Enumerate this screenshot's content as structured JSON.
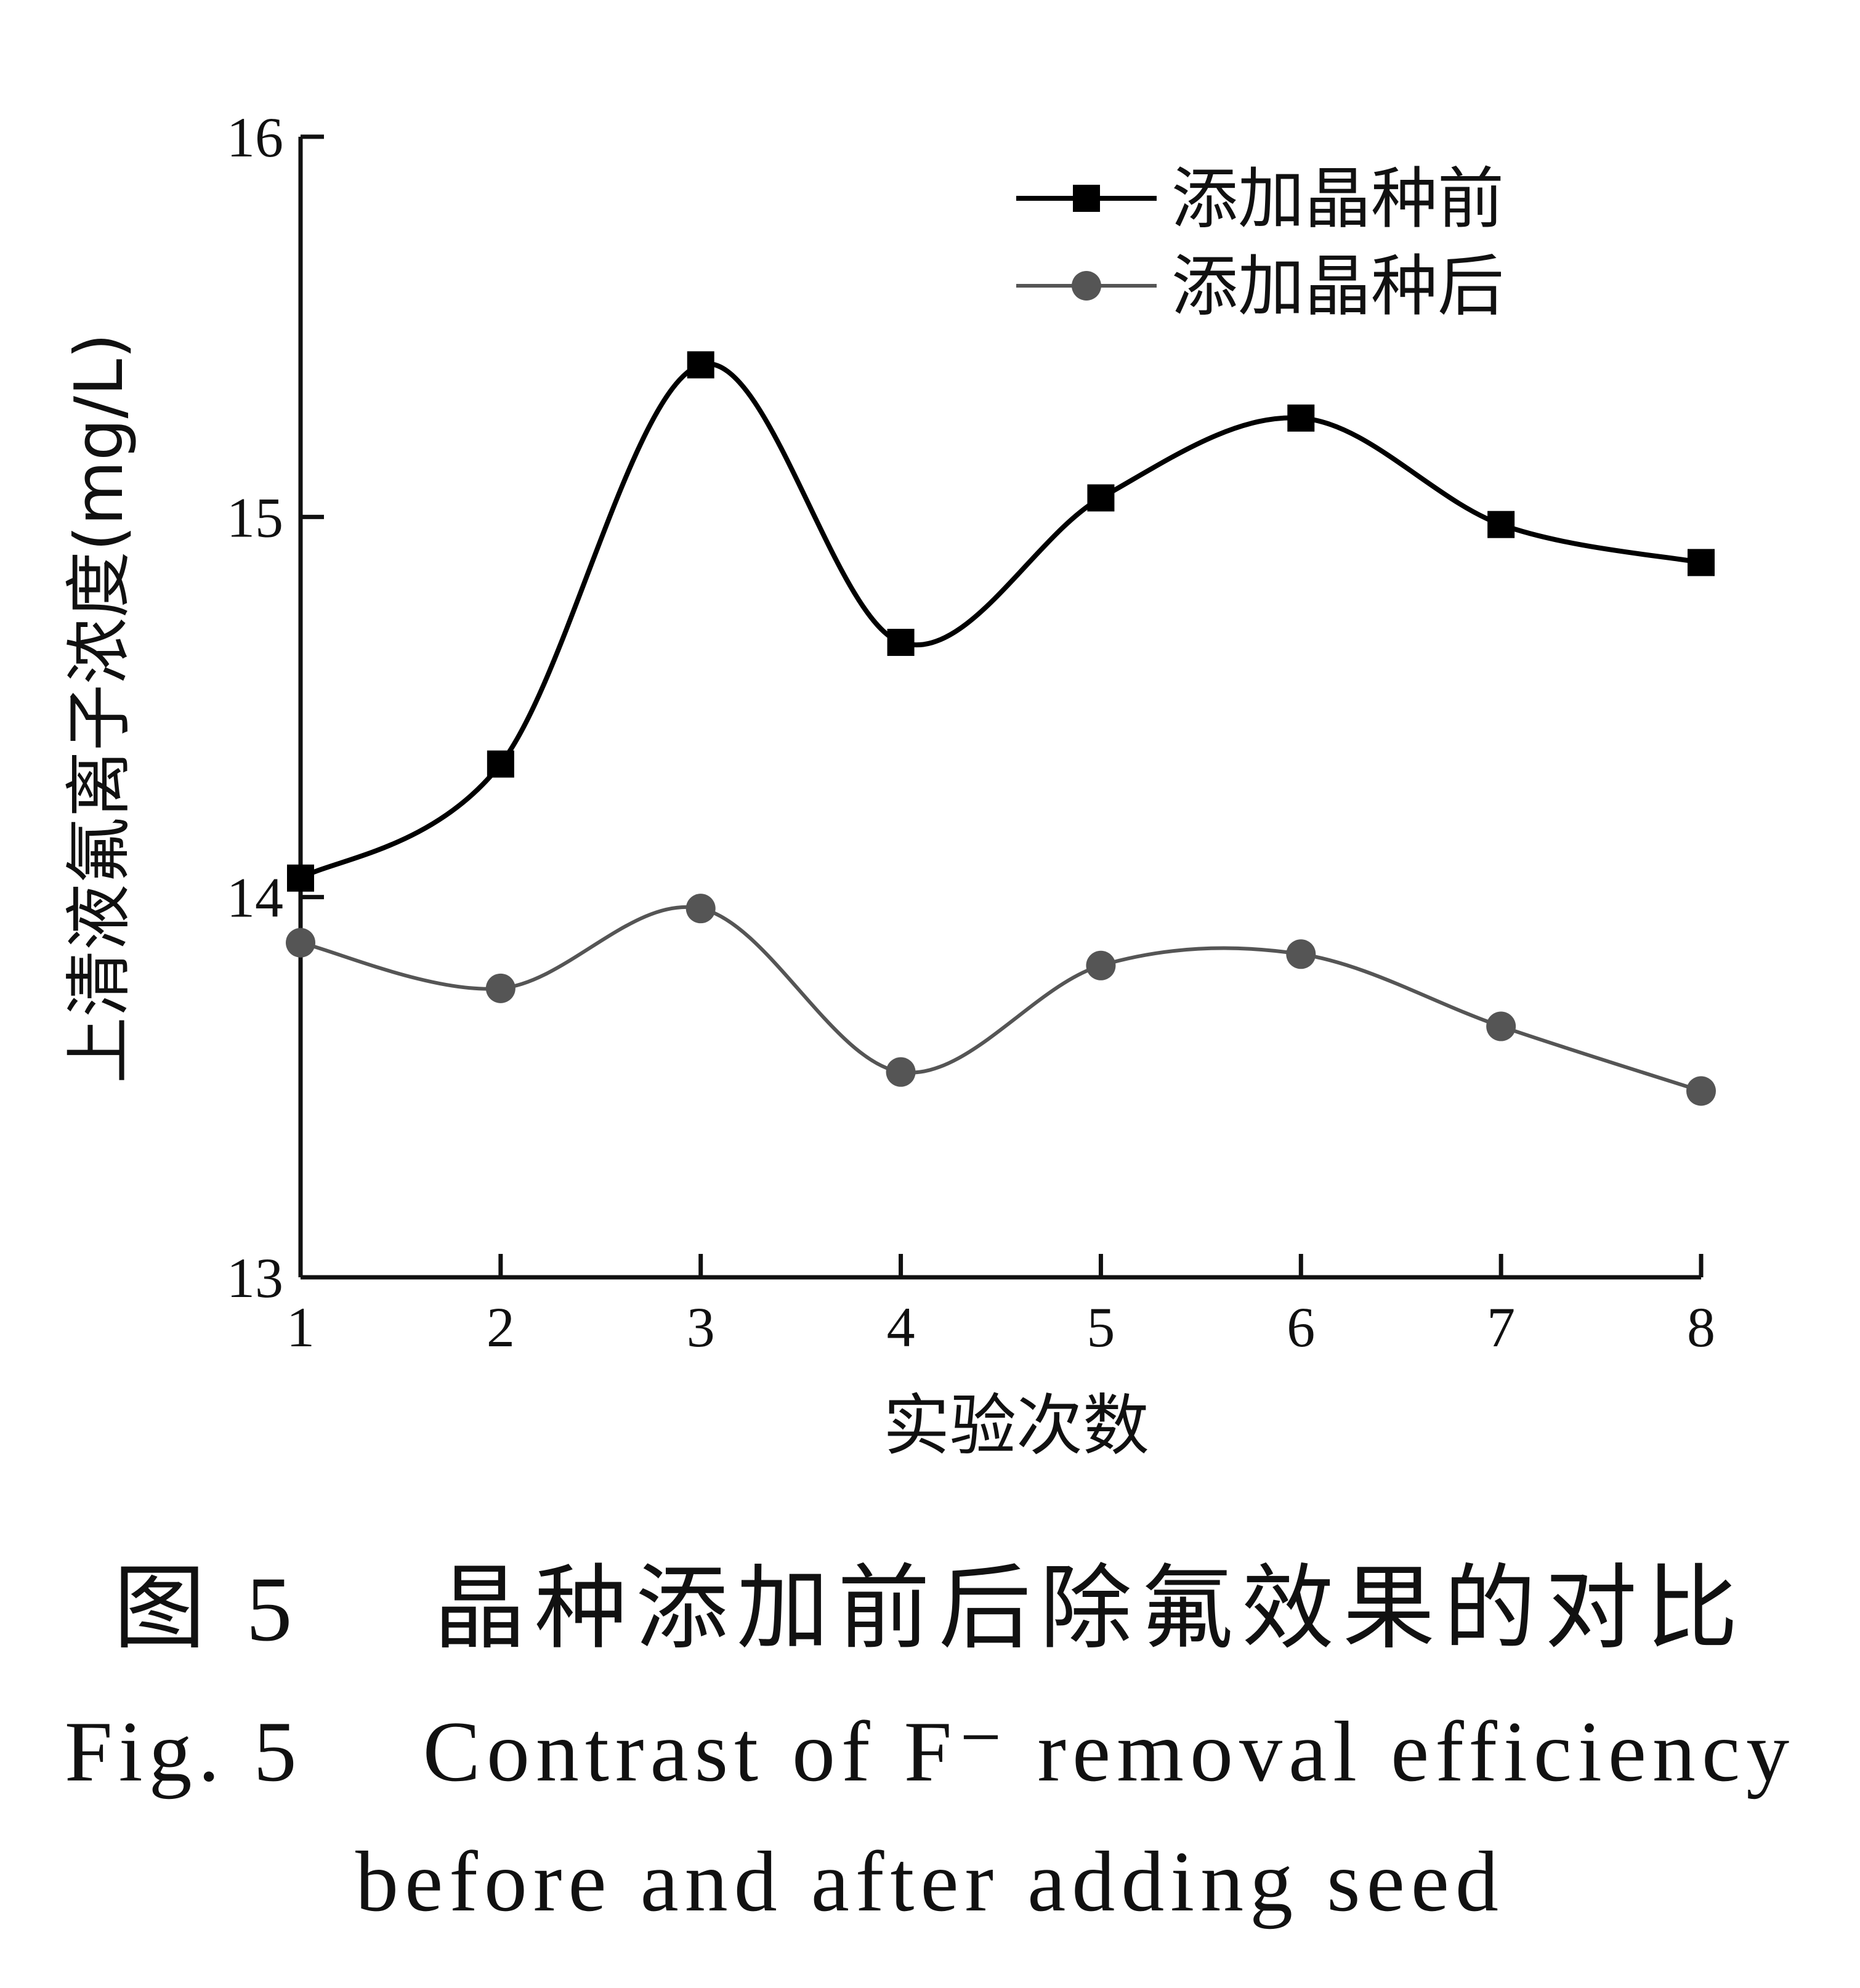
{
  "chart_data": {
    "type": "line",
    "xlabel": "实验次数",
    "ylabel": "上清液氟离子浓度(mg/L)",
    "x": [
      1,
      2,
      3,
      4,
      5,
      6,
      7,
      8
    ],
    "xlim": [
      1,
      8
    ],
    "ylim": [
      13,
      16
    ],
    "yticks": [
      13,
      14,
      15,
      16
    ],
    "xticks": [
      1,
      2,
      3,
      4,
      5,
      6,
      7,
      8
    ],
    "grid": false,
    "smooth": true,
    "legend_position": "top-right",
    "series": [
      {
        "name": "添加晶种前",
        "marker": "square",
        "color": "#000000",
        "values": [
          14.05,
          14.35,
          15.4,
          14.67,
          15.05,
          15.26,
          14.98,
          14.88
        ]
      },
      {
        "name": "添加晶种后",
        "marker": "circle",
        "color": "#555555",
        "values": [
          13.88,
          13.76,
          13.97,
          13.54,
          13.82,
          13.85,
          13.66,
          13.49
        ]
      }
    ]
  },
  "caption": {
    "cn": "图 5　 晶种添加前后除氟效果的对比",
    "en_line1": "Fig. 5　 Contrast of F⁻ removal efficiency",
    "en_line2": "before and after adding seed"
  }
}
